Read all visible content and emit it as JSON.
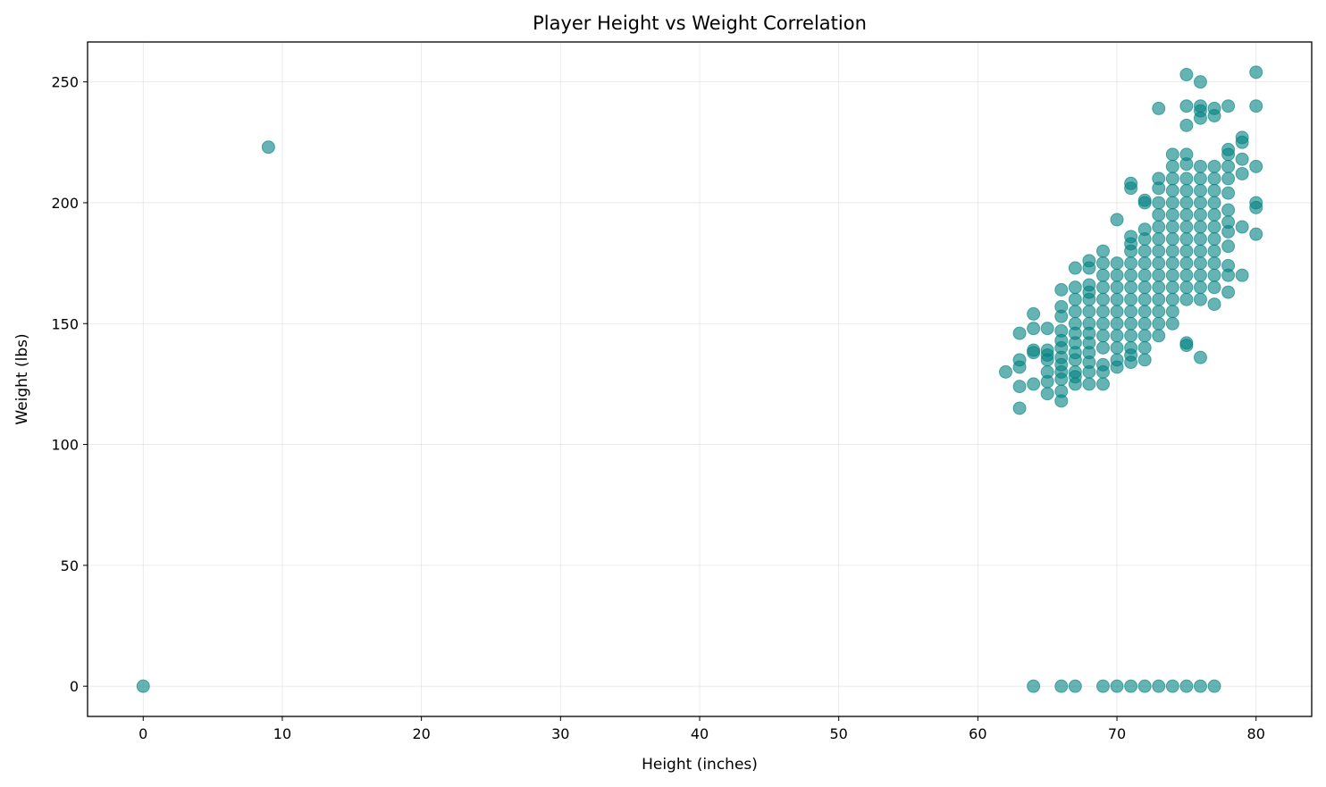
{
  "chart_data": {
    "type": "scatter",
    "title": "Player Height vs Weight Correlation",
    "xlabel": "Height (inches)",
    "ylabel": "Weight (lbs)",
    "xlim": [
      -4,
      84
    ],
    "ylim": [
      -12.5,
      266.5
    ],
    "xticks": [
      0,
      10,
      20,
      30,
      40,
      50,
      60,
      70,
      80
    ],
    "yticks": [
      0,
      50,
      100,
      150,
      200,
      250
    ],
    "grid": true,
    "marker_color": "#008080",
    "marker_alpha": 0.6,
    "points": [
      [
        0,
        0
      ],
      [
        9,
        223
      ],
      [
        64,
        0
      ],
      [
        66,
        0
      ],
      [
        67,
        0
      ],
      [
        69,
        0
      ],
      [
        70,
        0
      ],
      [
        71,
        0
      ],
      [
        72,
        0
      ],
      [
        73,
        0
      ],
      [
        74,
        0
      ],
      [
        75,
        0
      ],
      [
        76,
        0
      ],
      [
        77,
        0
      ],
      [
        62,
        130
      ],
      [
        63,
        115
      ],
      [
        63,
        124
      ],
      [
        63,
        132
      ],
      [
        63,
        135
      ],
      [
        63,
        146
      ],
      [
        64,
        125
      ],
      [
        64,
        138
      ],
      [
        64,
        139
      ],
      [
        64,
        148
      ],
      [
        64,
        154
      ],
      [
        65,
        121
      ],
      [
        65,
        126
      ],
      [
        65,
        130
      ],
      [
        65,
        135
      ],
      [
        65,
        137
      ],
      [
        65,
        139
      ],
      [
        65,
        148
      ],
      [
        66,
        118
      ],
      [
        66,
        122
      ],
      [
        66,
        127
      ],
      [
        66,
        130
      ],
      [
        66,
        133
      ],
      [
        66,
        136
      ],
      [
        66,
        140
      ],
      [
        66,
        143
      ],
      [
        66,
        147
      ],
      [
        66,
        153
      ],
      [
        66,
        157
      ],
      [
        66,
        164
      ],
      [
        67,
        125
      ],
      [
        67,
        128
      ],
      [
        67,
        130
      ],
      [
        67,
        135
      ],
      [
        67,
        138
      ],
      [
        67,
        142
      ],
      [
        67,
        146
      ],
      [
        67,
        150
      ],
      [
        67,
        155
      ],
      [
        67,
        160
      ],
      [
        67,
        165
      ],
      [
        67,
        173
      ],
      [
        68,
        125
      ],
      [
        68,
        130
      ],
      [
        68,
        134
      ],
      [
        68,
        138
      ],
      [
        68,
        142
      ],
      [
        68,
        146
      ],
      [
        68,
        150
      ],
      [
        68,
        155
      ],
      [
        68,
        160
      ],
      [
        68,
        163
      ],
      [
        68,
        166
      ],
      [
        68,
        173
      ],
      [
        68,
        176
      ],
      [
        69,
        125
      ],
      [
        69,
        130
      ],
      [
        69,
        133
      ],
      [
        69,
        140
      ],
      [
        69,
        145
      ],
      [
        69,
        150
      ],
      [
        69,
        155
      ],
      [
        69,
        160
      ],
      [
        69,
        165
      ],
      [
        69,
        170
      ],
      [
        69,
        175
      ],
      [
        69,
        180
      ],
      [
        70,
        132
      ],
      [
        70,
        135
      ],
      [
        70,
        140
      ],
      [
        70,
        145
      ],
      [
        70,
        150
      ],
      [
        70,
        155
      ],
      [
        70,
        160
      ],
      [
        70,
        165
      ],
      [
        70,
        170
      ],
      [
        70,
        175
      ],
      [
        70,
        193
      ],
      [
        71,
        134
      ],
      [
        71,
        137
      ],
      [
        71,
        140
      ],
      [
        71,
        145
      ],
      [
        71,
        150
      ],
      [
        71,
        155
      ],
      [
        71,
        160
      ],
      [
        71,
        165
      ],
      [
        71,
        170
      ],
      [
        71,
        175
      ],
      [
        71,
        180
      ],
      [
        71,
        183
      ],
      [
        71,
        186
      ],
      [
        71,
        206
      ],
      [
        71,
        208
      ],
      [
        72,
        135
      ],
      [
        72,
        140
      ],
      [
        72,
        145
      ],
      [
        72,
        150
      ],
      [
        72,
        155
      ],
      [
        72,
        160
      ],
      [
        72,
        165
      ],
      [
        72,
        170
      ],
      [
        72,
        175
      ],
      [
        72,
        180
      ],
      [
        72,
        185
      ],
      [
        72,
        189
      ],
      [
        72,
        200
      ],
      [
        72,
        201
      ],
      [
        73,
        145
      ],
      [
        73,
        150
      ],
      [
        73,
        155
      ],
      [
        73,
        160
      ],
      [
        73,
        165
      ],
      [
        73,
        170
      ],
      [
        73,
        175
      ],
      [
        73,
        180
      ],
      [
        73,
        185
      ],
      [
        73,
        190
      ],
      [
        73,
        195
      ],
      [
        73,
        200
      ],
      [
        73,
        206
      ],
      [
        73,
        210
      ],
      [
        73,
        239
      ],
      [
        74,
        150
      ],
      [
        74,
        155
      ],
      [
        74,
        160
      ],
      [
        74,
        165
      ],
      [
        74,
        170
      ],
      [
        74,
        175
      ],
      [
        74,
        180
      ],
      [
        74,
        185
      ],
      [
        74,
        190
      ],
      [
        74,
        195
      ],
      [
        74,
        200
      ],
      [
        74,
        205
      ],
      [
        74,
        210
      ],
      [
        74,
        215
      ],
      [
        74,
        220
      ],
      [
        75,
        141
      ],
      [
        75,
        142
      ],
      [
        75,
        160
      ],
      [
        75,
        165
      ],
      [
        75,
        170
      ],
      [
        75,
        175
      ],
      [
        75,
        180
      ],
      [
        75,
        185
      ],
      [
        75,
        190
      ],
      [
        75,
        195
      ],
      [
        75,
        200
      ],
      [
        75,
        205
      ],
      [
        75,
        210
      ],
      [
        75,
        216
      ],
      [
        75,
        220
      ],
      [
        75,
        232
      ],
      [
        75,
        240
      ],
      [
        75,
        253
      ],
      [
        76,
        136
      ],
      [
        76,
        160
      ],
      [
        76,
        165
      ],
      [
        76,
        170
      ],
      [
        76,
        175
      ],
      [
        76,
        180
      ],
      [
        76,
        185
      ],
      [
        76,
        190
      ],
      [
        76,
        195
      ],
      [
        76,
        200
      ],
      [
        76,
        205
      ],
      [
        76,
        210
      ],
      [
        76,
        215
      ],
      [
        76,
        235
      ],
      [
        76,
        238
      ],
      [
        76,
        240
      ],
      [
        76,
        250
      ],
      [
        77,
        158
      ],
      [
        77,
        165
      ],
      [
        77,
        170
      ],
      [
        77,
        175
      ],
      [
        77,
        180
      ],
      [
        77,
        185
      ],
      [
        77,
        190
      ],
      [
        77,
        195
      ],
      [
        77,
        200
      ],
      [
        77,
        205
      ],
      [
        77,
        210
      ],
      [
        77,
        215
      ],
      [
        77,
        236
      ],
      [
        77,
        239
      ],
      [
        78,
        163
      ],
      [
        78,
        170
      ],
      [
        78,
        174
      ],
      [
        78,
        182
      ],
      [
        78,
        188
      ],
      [
        78,
        192
      ],
      [
        78,
        197
      ],
      [
        78,
        204
      ],
      [
        78,
        210
      ],
      [
        78,
        215
      ],
      [
        78,
        220
      ],
      [
        78,
        222
      ],
      [
        78,
        240
      ],
      [
        79,
        170
      ],
      [
        79,
        190
      ],
      [
        79,
        212
      ],
      [
        79,
        218
      ],
      [
        79,
        225
      ],
      [
        79,
        227
      ],
      [
        80,
        187
      ],
      [
        80,
        198
      ],
      [
        80,
        200
      ],
      [
        80,
        215
      ],
      [
        80,
        240
      ],
      [
        80,
        254
      ]
    ]
  }
}
